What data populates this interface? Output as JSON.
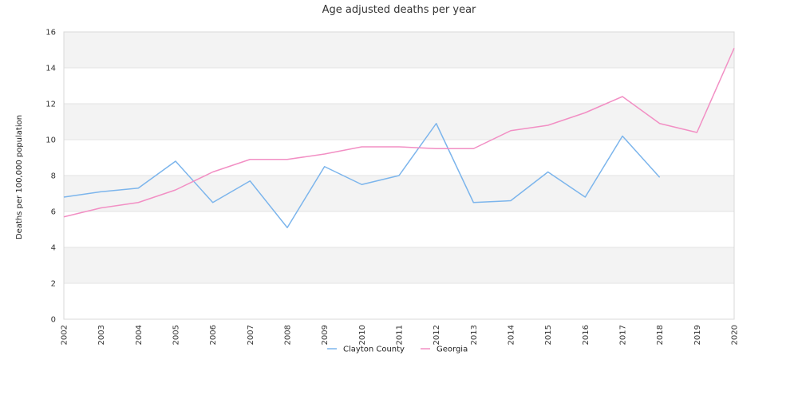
{
  "chart_data": {
    "type": "line",
    "title": "Age adjusted deaths per year",
    "xlabel": "",
    "ylabel": "Deaths per 100,000 population",
    "categories": [
      "2002",
      "2003",
      "2004",
      "2005",
      "2006",
      "2007",
      "2008",
      "2009",
      "2010",
      "2011",
      "2012",
      "2013",
      "2014",
      "2015",
      "2016",
      "2017",
      "2018",
      "2019",
      "2020"
    ],
    "ylim": [
      0,
      16
    ],
    "yticks": [
      "0",
      "2",
      "4",
      "6",
      "8",
      "10",
      "12",
      "14",
      "16"
    ],
    "grid": true,
    "legend_position": "bottom",
    "series": [
      {
        "name": "Clayton County",
        "color": "#7cb5ec",
        "values": [
          6.8,
          7.1,
          7.3,
          8.8,
          6.5,
          7.7,
          5.1,
          8.5,
          7.5,
          8.0,
          10.9,
          6.5,
          6.6,
          8.2,
          6.8,
          10.2,
          7.9,
          null,
          null
        ]
      },
      {
        "name": "Georgia",
        "color": "#f28fc4",
        "values": [
          5.7,
          6.2,
          6.5,
          7.2,
          8.2,
          8.9,
          8.9,
          9.2,
          9.6,
          9.6,
          9.5,
          9.5,
          10.5,
          10.8,
          11.5,
          12.4,
          10.9,
          10.4,
          15.1
        ]
      }
    ]
  }
}
